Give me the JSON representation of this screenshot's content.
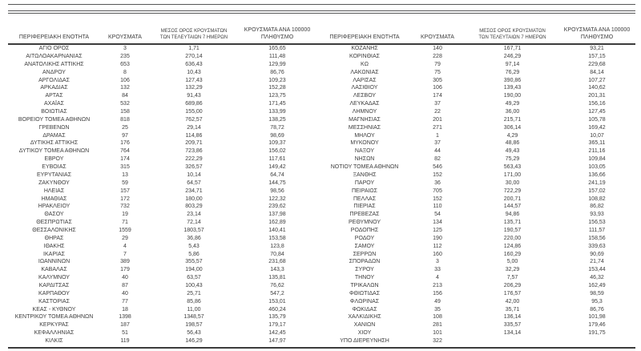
{
  "report": {
    "colors": {
      "text": "#3d3d3d",
      "rule_thin": "#555657",
      "rule_thick": "#3c3c3c",
      "background": "#ffffff"
    },
    "columns": {
      "region": "ΠΕΡΙΦΕΡΕΙΑΚΗ ΕΝΟΤΗΤΑ",
      "cases": "ΚΡΟΥΣΜΑΤΑ",
      "avg7_l1": "ΜΕΣΟΣ ΟΡΟΣ ΚΡΟΥΣΜΑΤΩΝ",
      "avg7_l2": "ΤΩΝ ΤΕΛΕΥΤΑΙΩΝ 7 ΗΜΕΡΩΝ",
      "per100k_l1": "ΚΡΟΥΣΜΑΤΑ ΑΝΑ 100000",
      "per100k_l2": "ΠΛΗΘΥΣΜΟ"
    },
    "left_table": {
      "rows": [
        [
          "ΑΓΙΟ ΟΡΟΣ",
          "3",
          "1,71",
          "165,65"
        ],
        [
          "ΑΙΤΩΛΟΑΚΑΡΝΑΝΙΑΣ",
          "235",
          "270,14",
          "111,48"
        ],
        [
          "ΑΝΑΤΟΛΙΚΗΣ ΑΤΤΙΚΗΣ",
          "653",
          "636,43",
          "129,99"
        ],
        [
          "ΑΝΔΡΟΥ",
          "8",
          "10,43",
          "86,76"
        ],
        [
          "ΑΡΓΟΛΙΔΑΣ",
          "106",
          "127,43",
          "109,23"
        ],
        [
          "ΑΡΚΑΔΙΑΣ",
          "132",
          "132,29",
          "152,28"
        ],
        [
          "ΑΡΤΑΣ",
          "84",
          "91,43",
          "123,75"
        ],
        [
          "ΑΧΑΪΑΣ",
          "532",
          "689,86",
          "171,45"
        ],
        [
          "ΒΟΙΩΤΙΑΣ",
          "158",
          "155,00",
          "133,99"
        ],
        [
          "ΒΟΡΕΙΟΥ ΤΟΜΕΑ ΑΘΗΝΩΝ",
          "818",
          "762,57",
          "138,25"
        ],
        [
          "ΓΡΕΒΕΝΩΝ",
          "25",
          "29,14",
          "78,72"
        ],
        [
          "ΔΡΑΜΑΣ",
          "97",
          "114,86",
          "98,69"
        ],
        [
          "ΔΥΤΙΚΗΣ ΑΤΤΙΚΗΣ",
          "176",
          "209,71",
          "109,37"
        ],
        [
          "ΔΥΤΙΚΟΥ ΤΟΜΕΑ ΑΘΗΝΩΝ",
          "764",
          "723,86",
          "156,02"
        ],
        [
          "ΕΒΡΟΥ",
          "174",
          "222,29",
          "117,61"
        ],
        [
          "ΕΥΒΟΙΑΣ",
          "315",
          "326,57",
          "149,42"
        ],
        [
          "ΕΥΡΥΤΑΝΙΑΣ",
          "13",
          "10,14",
          "64,74"
        ],
        [
          "ΖΑΚΥΝΘΟΥ",
          "59",
          "64,57",
          "144,75"
        ],
        [
          "ΗΛΕΙΑΣ",
          "157",
          "234,71",
          "98,56"
        ],
        [
          "ΗΜΑΘΙΑΣ",
          "172",
          "180,00",
          "122,32"
        ],
        [
          "ΗΡΑΚΛΕΙΟΥ",
          "732",
          "803,29",
          "239,62"
        ],
        [
          "ΘΑΣΟΥ",
          "19",
          "23,14",
          "137,98"
        ],
        [
          "ΘΕΣΠΡΩΤΙΑΣ",
          "71",
          "72,14",
          "162,89"
        ],
        [
          "ΘΕΣΣΑΛΟΝΙΚΗΣ",
          "1559",
          "1803,57",
          "140,41"
        ],
        [
          "ΘΗΡΑΣ",
          "29",
          "36,86",
          "153,58"
        ],
        [
          "ΙΘΑΚΗΣ",
          "4",
          "5,43",
          "123,8"
        ],
        [
          "ΙΚΑΡΙΑΣ",
          "7",
          "5,86",
          "70,84"
        ],
        [
          "ΙΩΑΝΝΙΝΩΝ",
          "389",
          "355,57",
          "231,68"
        ],
        [
          "ΚΑΒΑΛΑΣ",
          "179",
          "194,00",
          "143,3"
        ],
        [
          "ΚΑΛΥΜΝΟΥ",
          "40",
          "63,57",
          "135,81"
        ],
        [
          "ΚΑΡΔΙΤΣΑΣ",
          "87",
          "100,43",
          "76,62"
        ],
        [
          "ΚΑΡΠΑΘΟΥ",
          "40",
          "25,71",
          "547,2"
        ],
        [
          "ΚΑΣΤΟΡΙΑΣ",
          "77",
          "85,86",
          "153,01"
        ],
        [
          "ΚΕΑΣ - ΚΥΘΝΟΥ",
          "18",
          "11,00",
          "460,24"
        ],
        [
          "ΚΕΝΤΡΙΚΟΥ ΤΟΜΕΑ ΑΘΗΝΩΝ",
          "1398",
          "1348,57",
          "135,79"
        ],
        [
          "ΚΕΡΚΥΡΑΣ",
          "187",
          "198,57",
          "179,17"
        ],
        [
          "ΚΕΦΑΛΛΗΝΙΑΣ",
          "51",
          "56,43",
          "142,45"
        ],
        [
          "ΚΙΛΚΙΣ",
          "119",
          "146,29",
          "147,97"
        ]
      ]
    },
    "right_table": {
      "rows": [
        [
          "ΚΟΖΑΝΗΣ",
          "140",
          "167,71",
          "93,21"
        ],
        [
          "ΚΟΡΙΝΘΙΑΣ",
          "228",
          "246,29",
          "157,15"
        ],
        [
          "ΚΩ",
          "79",
          "97,14",
          "229,68"
        ],
        [
          "ΛΑΚΩΝΙΑΣ",
          "75",
          "76,29",
          "84,14"
        ],
        [
          "ΛΑΡΙΣΑΣ",
          "305",
          "390,86",
          "107,27"
        ],
        [
          "ΛΑΣΙΘΙΟΥ",
          "106",
          "139,43",
          "140,62"
        ],
        [
          "ΛΕΣΒΟΥ",
          "174",
          "190,00",
          "201,31"
        ],
        [
          "ΛΕΥΚΑΔΑΣ",
          "37",
          "49,29",
          "156,16"
        ],
        [
          "ΛΗΜΝΟΥ",
          "22",
          "36,00",
          "127,45"
        ],
        [
          "ΜΑΓΝΗΣΙΑΣ",
          "201",
          "215,71",
          "105,78"
        ],
        [
          "ΜΕΣΣΗΝΙΑΣ",
          "271",
          "306,14",
          "169,42"
        ],
        [
          "ΜΗΛΟΥ",
          "1",
          "4,29",
          "10,07"
        ],
        [
          "ΜΥΚΟΝΟΥ",
          "37",
          "48,86",
          "365,11"
        ],
        [
          "ΝΑΞΟΥ",
          "44",
          "49,43",
          "211,16"
        ],
        [
          "ΝΗΣΩΝ",
          "82",
          "75,29",
          "109,84"
        ],
        [
          "ΝΟΤΙΟΥ ΤΟΜΕΑ ΑΘΗΝΩΝ",
          "546",
          "563,43",
          "103,05"
        ],
        [
          "ΞΑΝΘΗΣ",
          "152",
          "171,00",
          "136,66"
        ],
        [
          "ΠΑΡΟΥ",
          "36",
          "30,00",
          "241,19"
        ],
        [
          "ΠΕΙΡΑΙΩΣ",
          "705",
          "722,29",
          "157,02"
        ],
        [
          "ΠΕΛΛΑΣ",
          "152",
          "200,71",
          "108,82"
        ],
        [
          "ΠΙΕΡΙΑΣ",
          "110",
          "144,57",
          "86,82"
        ],
        [
          "ΠΡΕΒΕΖΑΣ",
          "54",
          "94,86",
          "93,93"
        ],
        [
          "ΡΕΘΥΜΝΟΥ",
          "134",
          "135,71",
          "156,53"
        ],
        [
          "ΡΟΔΟΠΗΣ",
          "125",
          "190,57",
          "111,57"
        ],
        [
          "ΡΟΔΟΥ",
          "190",
          "220,00",
          "158,56"
        ],
        [
          "ΣΑΜΟΥ",
          "112",
          "124,86",
          "339,63"
        ],
        [
          "ΣΕΡΡΩΝ",
          "160",
          "160,29",
          "90,69"
        ],
        [
          "ΣΠΟΡΑΔΩΝ",
          "3",
          "5,00",
          "21,74"
        ],
        [
          "ΣΥΡΟΥ",
          "33",
          "32,29",
          "153,44"
        ],
        [
          "ΤΗΝΟΥ",
          "4",
          "7,57",
          "46,32"
        ],
        [
          "ΤΡΙΚΑΛΩΝ",
          "213",
          "206,29",
          "162,49"
        ],
        [
          "ΦΘΙΩΤΙΔΑΣ",
          "156",
          "176,57",
          "98,59"
        ],
        [
          "ΦΛΩΡΙΝΑΣ",
          "49",
          "42,00",
          "95,3"
        ],
        [
          "ΦΩΚΙΔΑΣ",
          "35",
          "35,71",
          "86,76"
        ],
        [
          "ΧΑΛΚΙΔΙΚΗΣ",
          "108",
          "136,14",
          "101,98"
        ],
        [
          "ΧΑΝΙΩΝ",
          "281",
          "335,57",
          "179,46"
        ],
        [
          "ΧΙΟΥ",
          "101",
          "134,14",
          "191,75"
        ],
        [
          "ΥΠΟ ΔΙΕΡΕΥΝΗΣΗ",
          "322",
          "",
          ""
        ]
      ]
    }
  }
}
